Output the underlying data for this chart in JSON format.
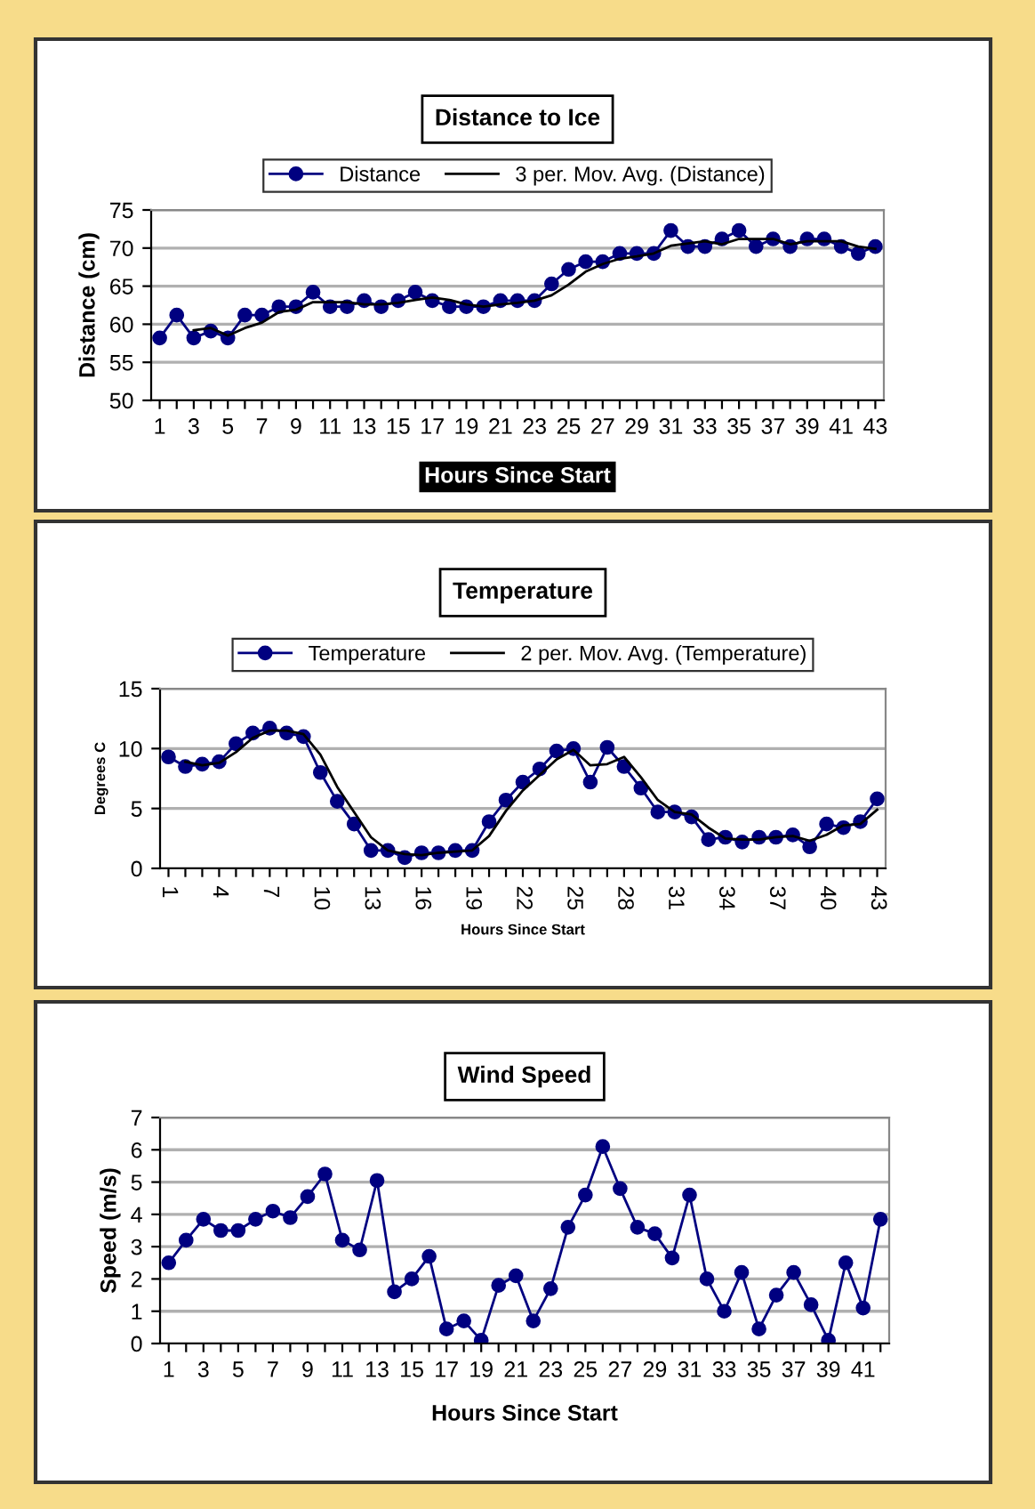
{
  "chart_data": [
    {
      "type": "line",
      "title": "Distance to Ice",
      "xlabel": "Hours Since Start",
      "ylabel": "Distance (cm)",
      "categories": [
        "1",
        null,
        "3",
        null,
        "5",
        null,
        "7",
        null,
        "9",
        null,
        "11",
        null,
        "13",
        null,
        "15",
        null,
        "17",
        null,
        "19",
        null,
        "21",
        null,
        "23",
        null,
        "25",
        null,
        "27",
        null,
        "29",
        null,
        "31",
        null,
        "33",
        null,
        "35",
        null,
        "37",
        null,
        "39",
        null,
        "41",
        null,
        "43"
      ],
      "ylim": [
        50,
        75
      ],
      "yticks": [
        50,
        55,
        60,
        65,
        70,
        75
      ],
      "grid": "y",
      "legend": "top",
      "series": [
        {
          "name": "Distance",
          "color": "#000080",
          "marker": "circle",
          "values": [
            58.2,
            61.2,
            58.2,
            59.1,
            58.2,
            61.2,
            61.2,
            62.3,
            62.3,
            64.2,
            62.3,
            62.3,
            63.1,
            62.3,
            63.1,
            64.2,
            63.1,
            62.3,
            62.3,
            62.3,
            63.1,
            63.1,
            63.1,
            65.3,
            67.2,
            68.2,
            68.2,
            69.3,
            69.3,
            69.3,
            72.3,
            70.2,
            70.2,
            71.2,
            72.3,
            70.2,
            71.2,
            70.2,
            71.2,
            71.2,
            70.2,
            69.3,
            70.2
          ]
        },
        {
          "name": "3 per. Mov. Avg. (Distance)",
          "color": "#000000",
          "marker": "none",
          "values": [
            null,
            null,
            59.2,
            59.5,
            58.5,
            59.5,
            60.2,
            61.6,
            61.9,
            62.9,
            62.9,
            62.9,
            62.6,
            62.6,
            62.8,
            63.2,
            63.5,
            63.2,
            62.6,
            62.3,
            62.6,
            62.8,
            63.1,
            63.8,
            65.2,
            66.9,
            67.9,
            68.6,
            68.9,
            69.3,
            70.3,
            70.6,
            70.9,
            70.5,
            71.2,
            71.2,
            71.2,
            70.5,
            70.9,
            70.9,
            70.9,
            70.2,
            69.9
          ]
        }
      ]
    },
    {
      "type": "line",
      "title": "Temperature",
      "xlabel": "Hours Since Start",
      "ylabel": "Degrees C",
      "categories": [
        "1",
        null,
        null,
        "4",
        null,
        null,
        "7",
        null,
        null,
        "10",
        null,
        null,
        "13",
        null,
        null,
        "16",
        null,
        null,
        "19",
        null,
        null,
        "22",
        null,
        null,
        "25",
        null,
        null,
        "28",
        null,
        null,
        "31",
        null,
        null,
        "34",
        null,
        null,
        "37",
        null,
        null,
        "40",
        null,
        null,
        "43"
      ],
      "ylim": [
        0,
        15
      ],
      "yticks": [
        0,
        5,
        10,
        15
      ],
      "grid": "y",
      "legend": "top",
      "series": [
        {
          "name": "Temperature",
          "color": "#000080",
          "marker": "circle",
          "values": [
            9.3,
            8.5,
            8.7,
            8.9,
            10.4,
            11.3,
            11.7,
            11.3,
            11.0,
            8.0,
            5.6,
            3.7,
            1.5,
            1.5,
            0.9,
            1.3,
            1.3,
            1.5,
            1.5,
            3.9,
            5.7,
            7.2,
            8.3,
            9.8,
            10.0,
            7.2,
            10.1,
            8.5,
            6.7,
            4.7,
            4.7,
            4.3,
            2.4,
            2.6,
            2.2,
            2.6,
            2.6,
            2.8,
            1.8,
            3.7,
            3.4,
            3.9,
            5.8
          ]
        },
        {
          "name": "2 per. Mov. Avg. (Temperature)",
          "color": "#000000",
          "marker": "none",
          "values": [
            null,
            8.9,
            8.6,
            8.8,
            9.7,
            10.9,
            11.5,
            11.5,
            11.2,
            9.5,
            6.8,
            4.7,
            2.6,
            1.5,
            1.2,
            1.1,
            1.3,
            1.4,
            1.5,
            2.7,
            4.8,
            6.5,
            7.8,
            9.1,
            9.9,
            8.6,
            8.7,
            9.3,
            7.6,
            5.7,
            4.7,
            4.5,
            3.4,
            2.5,
            2.4,
            2.4,
            2.6,
            2.7,
            2.3,
            2.8,
            3.6,
            3.7,
            4.9
          ]
        }
      ]
    },
    {
      "type": "line",
      "title": "Wind Speed",
      "xlabel": "Hours Since Start",
      "ylabel": "Speed (m/s)",
      "categories": [
        "1",
        null,
        "3",
        null,
        "5",
        null,
        "7",
        null,
        "9",
        null,
        "11",
        null,
        "13",
        null,
        "15",
        null,
        "17",
        null,
        "19",
        null,
        "21",
        null,
        "23",
        null,
        "25",
        null,
        "27",
        null,
        "29",
        null,
        "31",
        null,
        "33",
        null,
        "35",
        null,
        "37",
        null,
        "39",
        null,
        "41",
        null
      ],
      "ylim": [
        0,
        7
      ],
      "yticks": [
        0,
        1,
        2,
        3,
        4,
        5,
        6,
        7
      ],
      "grid": "y",
      "series": [
        {
          "color": "#000080",
          "marker": "circle",
          "values": [
            2.5,
            3.2,
            3.85,
            3.5,
            3.5,
            3.85,
            4.1,
            3.9,
            4.55,
            5.25,
            3.2,
            2.9,
            5.05,
            1.6,
            2.0,
            2.7,
            0.45,
            0.7,
            0.1,
            1.8,
            2.1,
            0.7,
            1.7,
            3.6,
            4.6,
            6.1,
            4.8,
            3.6,
            3.4,
            2.65,
            4.6,
            2.0,
            1.0,
            2.2,
            0.45,
            1.5,
            2.2,
            1.2,
            0.1,
            2.5,
            1.1,
            3.85
          ]
        }
      ]
    }
  ]
}
